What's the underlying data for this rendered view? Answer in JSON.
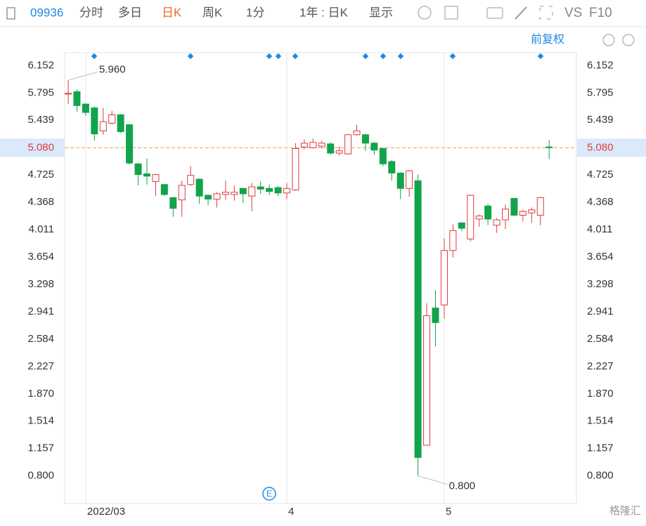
{
  "toolbar": {
    "code": "09936",
    "tabs": [
      "分时",
      "多日",
      "日K",
      "周K",
      "1分",
      "1年 : 日K",
      "显示"
    ],
    "vs": "VS",
    "f10": "F10",
    "adjust": "前复权"
  },
  "watermark": "格隆汇",
  "chart_data": {
    "type": "candlestick",
    "categories": [
      null,
      null,
      "2022/03",
      null,
      null,
      null,
      null,
      null,
      null,
      null,
      null,
      null,
      null,
      null,
      null,
      null,
      null,
      null,
      null,
      null,
      null,
      null,
      null,
      null,
      null,
      "4",
      null,
      null,
      null,
      null,
      null,
      null,
      null,
      null,
      null,
      null,
      null,
      null,
      null,
      null,
      null,
      null,
      null,
      "5",
      null,
      null,
      null,
      null,
      null,
      null,
      null,
      null,
      null,
      null,
      null,
      null
    ],
    "open": [
      5.78,
      5.81,
      5.65,
      5.6,
      5.3,
      5.4,
      5.51,
      5.38,
      4.87,
      4.74,
      4.64,
      4.6,
      4.43,
      4.4,
      4.6,
      4.67,
      4.46,
      4.41,
      4.47,
      4.47,
      4.55,
      4.45,
      4.57,
      4.55,
      4.56,
      4.49,
      4.53,
      5.09,
      5.08,
      5.1,
      5.13,
      5.01,
      5.0,
      5.25,
      5.25,
      5.14,
      5.07,
      4.9,
      4.75,
      4.55,
      4.65,
      1.2,
      2.99,
      3.03,
      3.74,
      4.1,
      3.89,
      4.15,
      4.32,
      4.07,
      4.14,
      4.42,
      4.2,
      4.23,
      4.2,
      5.09
    ],
    "high": [
      5.96,
      5.84,
      5.66,
      5.62,
      5.6,
      5.56,
      5.52,
      5.39,
      4.88,
      4.94,
      4.74,
      4.61,
      4.44,
      4.65,
      4.84,
      4.68,
      4.47,
      4.5,
      4.65,
      4.59,
      4.56,
      4.62,
      4.64,
      4.6,
      4.58,
      4.62,
      5.14,
      5.19,
      5.2,
      5.17,
      5.15,
      5.1,
      5.26,
      5.38,
      5.26,
      5.16,
      5.08,
      4.92,
      4.76,
      4.79,
      4.73,
      3.05,
      3.22,
      3.9,
      4.08,
      4.11,
      4.47,
      4.21,
      4.35,
      4.16,
      4.34,
      4.42,
      4.27,
      4.3,
      4.44,
      5.18
    ],
    "low": [
      5.65,
      5.55,
      5.5,
      5.17,
      5.25,
      5.38,
      5.27,
      4.86,
      4.59,
      4.6,
      4.45,
      4.45,
      4.18,
      4.18,
      4.58,
      4.35,
      4.33,
      4.3,
      4.4,
      4.39,
      4.36,
      4.25,
      4.48,
      4.46,
      4.45,
      4.41,
      4.52,
      5.06,
      5.07,
      5.07,
      4.99,
      4.98,
      4.99,
      5.24,
      5.04,
      4.99,
      4.84,
      4.65,
      4.41,
      4.44,
      0.8,
      1.2,
      2.49,
      2.85,
      3.65,
      3.99,
      3.86,
      4.05,
      4.07,
      3.97,
      4.02,
      4.19,
      4.12,
      4.1,
      4.07,
      4.93
    ],
    "close": [
      5.79,
      5.63,
      5.54,
      5.26,
      5.42,
      5.51,
      5.29,
      4.88,
      4.73,
      4.71,
      4.73,
      4.47,
      4.29,
      4.59,
      4.72,
      4.45,
      4.41,
      4.48,
      4.5,
      4.5,
      4.48,
      4.57,
      4.54,
      4.51,
      4.49,
      4.55,
      5.07,
      5.14,
      5.15,
      5.14,
      5.01,
      5.04,
      5.25,
      5.3,
      5.14,
      5.05,
      4.87,
      4.75,
      4.55,
      4.78,
      1.04,
      2.89,
      2.8,
      3.74,
      4.0,
      4.03,
      4.46,
      4.19,
      4.15,
      4.14,
      4.28,
      4.2,
      4.25,
      4.27,
      4.43,
      5.08
    ],
    "up_color": "#e0393e",
    "down_color": "#11a44a",
    "ylim": [
      0.44,
      6.32
    ],
    "yticks": [
      6.152,
      5.795,
      5.439,
      4.725,
      4.368,
      4.011,
      3.654,
      3.298,
      2.941,
      2.584,
      2.227,
      {
        "value": 1.87,
        "label": "1.870"
      },
      1.514,
      1.157,
      {
        "value": 0.8,
        "label": "0.800"
      }
    ],
    "current_price": {
      "value": 5.08,
      "label": "5.080"
    },
    "max_label": {
      "value": 5.96,
      "label": "5.960"
    },
    "min_label": {
      "value": 0.8,
      "label": "0.800"
    },
    "grid": "x"
  }
}
